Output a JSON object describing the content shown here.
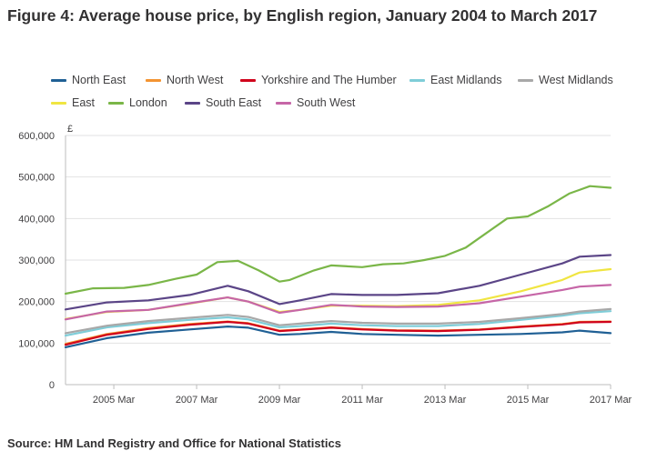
{
  "page": {
    "title": "Figure 4: Average house price, by English region, January 2004 to March 2017",
    "source": "Source: HM Land Registry and Office for National Statistics"
  },
  "chart_data": {
    "type": "line",
    "title": "Figure 4: Average house price, by English region, January 2004 to March 2017",
    "ylabel": "£",
    "xlabel": "",
    "x_range": [
      "2004-01",
      "2017-03"
    ],
    "ylim": [
      0,
      600000
    ],
    "yticks": [
      0,
      100000,
      200000,
      300000,
      400000,
      500000,
      600000
    ],
    "ytick_labels": [
      "0",
      "100,000",
      "200,000",
      "300,000",
      "400,000",
      "500,000",
      "600,000"
    ],
    "xticks": [
      "2005-03",
      "2007-03",
      "2009-03",
      "2011-03",
      "2013-03",
      "2015-03",
      "2017-03"
    ],
    "xtick_labels": [
      "2005 Mar",
      "2007 Mar",
      "2009 Mar",
      "2011 Mar",
      "2013 Mar",
      "2015 Mar",
      "2017 Mar"
    ],
    "grid": "horizontal",
    "legend_position": "top",
    "series": [
      {
        "name": "North East",
        "color": "#206095",
        "points": [
          [
            "2004-01",
            90000
          ],
          [
            "2005-01",
            112000
          ],
          [
            "2006-01",
            125000
          ],
          [
            "2007-01",
            133000
          ],
          [
            "2007-12",
            140000
          ],
          [
            "2008-06",
            137000
          ],
          [
            "2009-03",
            120000
          ],
          [
            "2009-09",
            122000
          ],
          [
            "2010-06",
            127000
          ],
          [
            "2011-03",
            122000
          ],
          [
            "2012-01",
            120000
          ],
          [
            "2013-01",
            118000
          ],
          [
            "2014-01",
            120000
          ],
          [
            "2015-01",
            122000
          ],
          [
            "2016-01",
            126000
          ],
          [
            "2016-06",
            130000
          ],
          [
            "2017-03",
            124000
          ]
        ]
      },
      {
        "name": "North West",
        "color": "#f39431",
        "points": [
          [
            "2004-01",
            98000
          ],
          [
            "2005-01",
            122000
          ],
          [
            "2006-01",
            136000
          ],
          [
            "2007-01",
            146000
          ],
          [
            "2007-12",
            152000
          ],
          [
            "2008-06",
            148000
          ],
          [
            "2009-03",
            130000
          ],
          [
            "2009-09",
            133000
          ],
          [
            "2010-06",
            138000
          ],
          [
            "2011-03",
            134000
          ],
          [
            "2012-01",
            131000
          ],
          [
            "2013-01",
            130000
          ],
          [
            "2014-01",
            133000
          ],
          [
            "2015-01",
            140000
          ],
          [
            "2016-01",
            146000
          ],
          [
            "2016-06",
            151000
          ],
          [
            "2017-03",
            152000
          ]
        ]
      },
      {
        "name": "Yorkshire and The Humber",
        "color": "#d0021b",
        "points": [
          [
            "2004-01",
            96000
          ],
          [
            "2005-01",
            120000
          ],
          [
            "2006-01",
            134000
          ],
          [
            "2007-01",
            144000
          ],
          [
            "2007-12",
            151000
          ],
          [
            "2008-06",
            147000
          ],
          [
            "2009-03",
            129000
          ],
          [
            "2009-09",
            132000
          ],
          [
            "2010-06",
            137000
          ],
          [
            "2011-03",
            133000
          ],
          [
            "2012-01",
            130000
          ],
          [
            "2013-01",
            129000
          ],
          [
            "2014-01",
            132000
          ],
          [
            "2015-01",
            139000
          ],
          [
            "2016-01",
            145000
          ],
          [
            "2016-06",
            150000
          ],
          [
            "2017-03",
            151000
          ]
        ]
      },
      {
        "name": "East Midlands",
        "color": "#7fcdd8",
        "points": [
          [
            "2004-01",
            118000
          ],
          [
            "2005-01",
            138000
          ],
          [
            "2006-01",
            148000
          ],
          [
            "2007-01",
            156000
          ],
          [
            "2007-12",
            162000
          ],
          [
            "2008-06",
            157000
          ],
          [
            "2009-03",
            138000
          ],
          [
            "2009-09",
            141000
          ],
          [
            "2010-06",
            147000
          ],
          [
            "2011-03",
            143000
          ],
          [
            "2012-01",
            141000
          ],
          [
            "2013-01",
            141000
          ],
          [
            "2014-01",
            146000
          ],
          [
            "2015-01",
            156000
          ],
          [
            "2016-01",
            166000
          ],
          [
            "2016-06",
            172000
          ],
          [
            "2017-03",
            177000
          ]
        ]
      },
      {
        "name": "West Midlands",
        "color": "#a8a8a8",
        "points": [
          [
            "2004-01",
            124000
          ],
          [
            "2005-01",
            142000
          ],
          [
            "2006-01",
            153000
          ],
          [
            "2007-01",
            161000
          ],
          [
            "2007-12",
            168000
          ],
          [
            "2008-06",
            163000
          ],
          [
            "2009-03",
            143000
          ],
          [
            "2009-09",
            147000
          ],
          [
            "2010-06",
            153000
          ],
          [
            "2011-03",
            149000
          ],
          [
            "2012-01",
            147000
          ],
          [
            "2013-01",
            147000
          ],
          [
            "2014-01",
            151000
          ],
          [
            "2015-01",
            160000
          ],
          [
            "2016-01",
            170000
          ],
          [
            "2016-06",
            176000
          ],
          [
            "2017-03",
            182000
          ]
        ]
      },
      {
        "name": "East",
        "color": "#f0e541",
        "points": [
          [
            "2004-01",
            158000
          ],
          [
            "2005-01",
            175000
          ],
          [
            "2006-01",
            180000
          ],
          [
            "2007-01",
            195000
          ],
          [
            "2007-12",
            210000
          ],
          [
            "2008-06",
            200000
          ],
          [
            "2009-03",
            175000
          ],
          [
            "2009-09",
            180000
          ],
          [
            "2010-06",
            190000
          ],
          [
            "2011-03",
            190000
          ],
          [
            "2012-01",
            189000
          ],
          [
            "2013-01",
            192000
          ],
          [
            "2014-01",
            203000
          ],
          [
            "2015-01",
            225000
          ],
          [
            "2016-01",
            252000
          ],
          [
            "2016-06",
            270000
          ],
          [
            "2017-03",
            278000
          ]
        ]
      },
      {
        "name": "London",
        "color": "#7ab648",
        "points": [
          [
            "2004-01",
            219000
          ],
          [
            "2004-09",
            232000
          ],
          [
            "2005-06",
            233000
          ],
          [
            "2006-01",
            240000
          ],
          [
            "2006-09",
            255000
          ],
          [
            "2007-03",
            265000
          ],
          [
            "2007-09",
            295000
          ],
          [
            "2008-03",
            298000
          ],
          [
            "2008-09",
            275000
          ],
          [
            "2009-03",
            248000
          ],
          [
            "2009-06",
            252000
          ],
          [
            "2010-01",
            275000
          ],
          [
            "2010-06",
            287000
          ],
          [
            "2011-03",
            283000
          ],
          [
            "2011-09",
            290000
          ],
          [
            "2012-03",
            292000
          ],
          [
            "2012-09",
            300000
          ],
          [
            "2013-03",
            310000
          ],
          [
            "2013-09",
            330000
          ],
          [
            "2014-03",
            365000
          ],
          [
            "2014-09",
            400000
          ],
          [
            "2015-03",
            405000
          ],
          [
            "2015-09",
            430000
          ],
          [
            "2016-03",
            460000
          ],
          [
            "2016-09",
            478000
          ],
          [
            "2017-03",
            474000
          ]
        ]
      },
      {
        "name": "South East",
        "color": "#5b4587",
        "points": [
          [
            "2004-01",
            181000
          ],
          [
            "2005-01",
            198000
          ],
          [
            "2006-01",
            203000
          ],
          [
            "2007-01",
            216000
          ],
          [
            "2007-12",
            238000
          ],
          [
            "2008-06",
            225000
          ],
          [
            "2009-03",
            194000
          ],
          [
            "2009-09",
            203000
          ],
          [
            "2010-06",
            218000
          ],
          [
            "2011-03",
            216000
          ],
          [
            "2012-01",
            216000
          ],
          [
            "2013-01",
            220000
          ],
          [
            "2014-01",
            238000
          ],
          [
            "2015-01",
            265000
          ],
          [
            "2016-01",
            292000
          ],
          [
            "2016-06",
            308000
          ],
          [
            "2017-03",
            312000
          ]
        ]
      },
      {
        "name": "South West",
        "color": "#c666a7",
        "points": [
          [
            "2004-01",
            157000
          ],
          [
            "2005-01",
            176000
          ],
          [
            "2006-01",
            180000
          ],
          [
            "2007-01",
            196000
          ],
          [
            "2007-12",
            210000
          ],
          [
            "2008-06",
            200000
          ],
          [
            "2009-03",
            173000
          ],
          [
            "2009-09",
            180000
          ],
          [
            "2010-06",
            192000
          ],
          [
            "2011-03",
            188000
          ],
          [
            "2012-01",
            187000
          ],
          [
            "2013-01",
            188000
          ],
          [
            "2014-01",
            196000
          ],
          [
            "2015-01",
            212000
          ],
          [
            "2016-01",
            228000
          ],
          [
            "2016-06",
            236000
          ],
          [
            "2017-03",
            240000
          ]
        ]
      }
    ]
  }
}
